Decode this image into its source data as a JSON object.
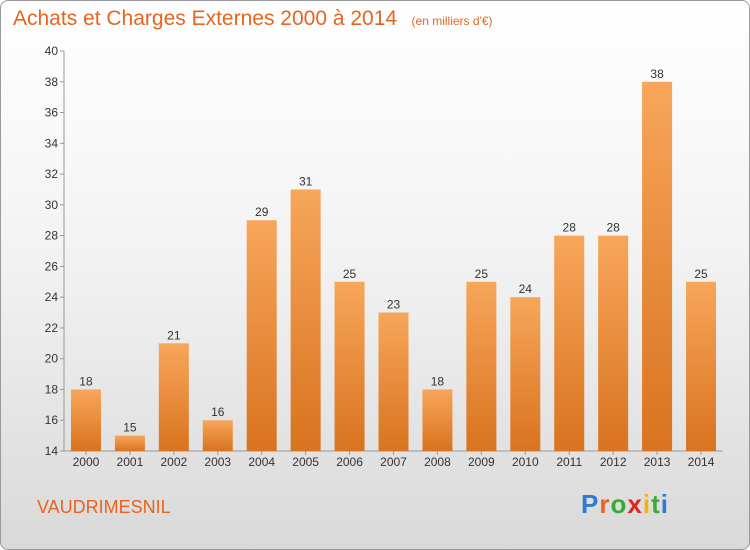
{
  "chart_data": {
    "type": "bar",
    "title": "Achats et Charges Externes 2000 à 2014",
    "unit_note": "(en milliers d'€)",
    "categories": [
      "2000",
      "2001",
      "2002",
      "2003",
      "2004",
      "2005",
      "2006",
      "2007",
      "2008",
      "2009",
      "2010",
      "2011",
      "2012",
      "2013",
      "2014"
    ],
    "values": [
      18,
      15,
      21,
      16,
      29,
      31,
      25,
      23,
      18,
      25,
      24,
      28,
      28,
      38,
      25
    ],
    "ylim": [
      14,
      40
    ],
    "yticks": [
      14,
      16,
      18,
      20,
      22,
      24,
      26,
      28,
      30,
      32,
      34,
      36,
      38,
      40
    ],
    "ytick_labels": [
      "14",
      "16",
      "18",
      "20",
      "22",
      "24",
      "26",
      "28",
      "30",
      "32",
      "34",
      "36",
      "38",
      "40"
    ],
    "xlabel": "",
    "ylabel": "",
    "grid": false,
    "bar_color_top": "#f7a65a",
    "bar_color_bottom": "#d9731f",
    "data_labels": true
  },
  "commune": "VAUDRIMESNIL",
  "logo": {
    "letters": [
      "P",
      "r",
      "o",
      "x",
      "i",
      "t",
      "i"
    ],
    "colors": [
      "#2e7bd6",
      "#e8641e",
      "#3aaa35",
      "#e2231a",
      "#f4b400",
      "#3aaa35",
      "#2e7bd6"
    ]
  },
  "accent_color": "#e8641e"
}
